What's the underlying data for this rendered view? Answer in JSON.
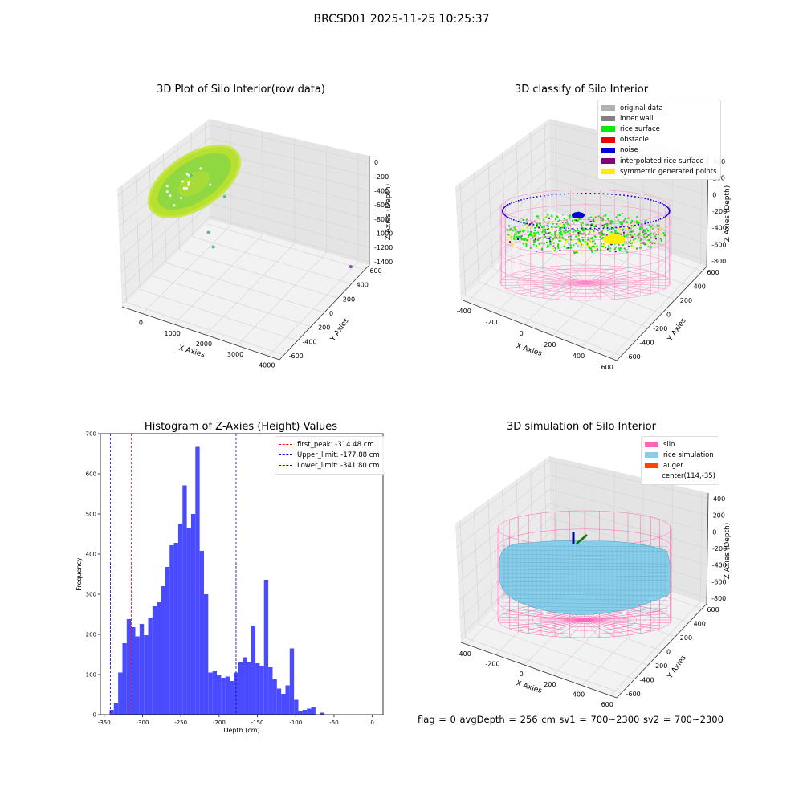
{
  "figure": {
    "suptitle": "BRCSD01 2025-11-25 10:25:37",
    "status_text": "flag = 0     avgDepth = 256 cm  sv1 = 700~2300  sv2 = 700~2300"
  },
  "chart_data": [
    {
      "type": "scatter3d",
      "title": "3D Plot of Silo Interior(row data)",
      "xlabel": "X Axies",
      "ylabel": "Y Axies",
      "zlabel": "Z Axies (Depth)",
      "x_ticks": [
        "0",
        "1000",
        "2000",
        "3000",
        "4000"
      ],
      "y_ticks": [
        "-600",
        "-400",
        "-200",
        "0",
        "200",
        "400",
        "600"
      ],
      "z_ticks": [
        "0",
        "-200",
        "-400",
        "-600",
        "-800",
        "-1000",
        "-1200",
        "-1400"
      ],
      "colors": {
        "surface": "#b8e030",
        "surface_mid": "#7fd44a",
        "outlier_green": "#4cc48a",
        "outlier_purple": "#8e44ad"
      },
      "outliers": [
        {
          "x": 450,
          "y": -150,
          "z": -560,
          "color": "outlier_green"
        },
        {
          "x": 1100,
          "y": 50,
          "z": -780,
          "color": "outlier_green"
        },
        {
          "x": 900,
          "y": -100,
          "z": -1010,
          "color": "outlier_green"
        },
        {
          "x": 950,
          "y": -50,
          "z": -1150,
          "color": "outlier_green"
        },
        {
          "x": 3950,
          "y": 600,
          "z": -1400,
          "color": "outlier_purple"
        }
      ]
    },
    {
      "type": "scatter3d",
      "title": "3D classify of Silo Interior",
      "xlabel": "X Axies",
      "ylabel": "Y Axies",
      "zlabel": "Z Axies (Depth)",
      "x_ticks": [
        "-400",
        "-200",
        "0",
        "200",
        "400",
        "600"
      ],
      "y_ticks": [
        "-600",
        "-400",
        "-200",
        "0",
        "200",
        "400",
        "600"
      ],
      "z_ticks": [
        "400",
        "200",
        "0",
        "-200",
        "-400",
        "-600",
        "-800"
      ],
      "legend": [
        {
          "label": "original data",
          "color": "#b0b0b0"
        },
        {
          "label": "inner wall",
          "color": "#808080"
        },
        {
          "label": "rice surface",
          "color": "#00ee00"
        },
        {
          "label": "obstacle",
          "color": "#ee0000"
        },
        {
          "label": "noise",
          "color": "#0000dd"
        },
        {
          "label": "interpolated rice surface",
          "color": "#800080"
        },
        {
          "label": "symmetric generated points",
          "color": "#ffee00"
        }
      ],
      "silo_color": "#ff88c8"
    },
    {
      "type": "histogram",
      "title": "Histogram of Z-Axies (Height) Values",
      "xlabel": "Depth (cm)",
      "ylabel": "Frequency",
      "xlim": [
        -355,
        14
      ],
      "ylim": [
        0,
        700
      ],
      "x_ticks": [
        -350,
        -300,
        -250,
        -200,
        -150,
        -100,
        -50,
        0
      ],
      "y_ticks": [
        0,
        100,
        200,
        300,
        400,
        500,
        600,
        700
      ],
      "bin_start": -343,
      "bin_width": 5.6,
      "bar_color": "#4a4aff",
      "values": [
        12,
        30,
        105,
        178,
        238,
        218,
        195,
        226,
        198,
        242,
        270,
        280,
        320,
        368,
        422,
        428,
        476,
        571,
        466,
        500,
        667,
        408,
        300,
        105,
        110,
        98,
        92,
        95,
        84,
        105,
        130,
        143,
        130,
        222,
        128,
        122,
        336,
        118,
        88,
        65,
        52,
        73,
        165,
        37,
        10,
        12,
        15,
        20,
        0,
        5
      ],
      "vlines": [
        {
          "label": "first_peak: -314.48 cm",
          "x": -314.48,
          "color": "#e00000"
        },
        {
          "label": "Upper_limit: -177.88 cm",
          "x": -177.88,
          "color": "#0000cc"
        },
        {
          "label": "Lower_limit: -341.80 cm",
          "x": -341.8,
          "color": "#0000cc"
        }
      ]
    },
    {
      "type": "surface3d",
      "title": "3D simulation of Silo Interior",
      "xlabel": "X Axies",
      "ylabel": "Y Axies",
      "zlabel": "Z Axies (Depth)",
      "x_ticks": [
        "-400",
        "-200",
        "0",
        "200",
        "400",
        "600"
      ],
      "y_ticks": [
        "-600",
        "-400",
        "-200",
        "0",
        "200",
        "400",
        "600"
      ],
      "z_ticks": [
        "400",
        "200",
        "0",
        "-200",
        "-400",
        "-600",
        "-800"
      ],
      "legend": [
        {
          "label": "silo",
          "color": "#ff66b8"
        },
        {
          "label": "rice simulation",
          "color": "#87ceeb"
        },
        {
          "label": "auger",
          "color": "#ff4400"
        },
        {
          "label": "center(114,-35)",
          "color": ""
        }
      ]
    }
  ]
}
